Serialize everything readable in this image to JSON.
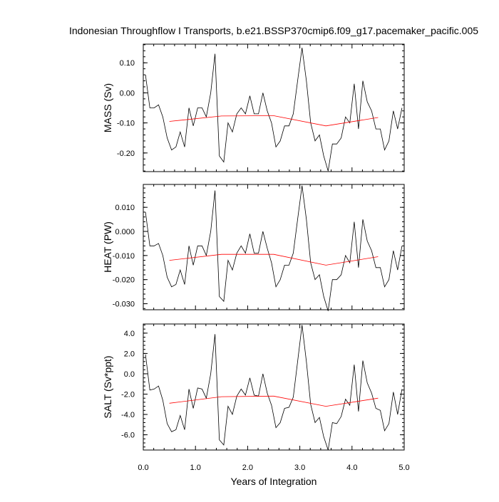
{
  "chart_data": {
    "type": "line",
    "title": "Indonesian Throughflow I Transports, b.e21.BSSP370cmip6.f09_g17.pacemaker_pacific.005",
    "xlabel": "Years of Integration",
    "xlim": [
      0,
      5
    ],
    "x_ticks": [
      0.0,
      1.0,
      2.0,
      3.0,
      4.0,
      5.0
    ],
    "x_tick_labels": [
      "0.0",
      "1.0",
      "2.0",
      "3.0",
      "4.0",
      "5.0"
    ],
    "x_minor_step": 0.2,
    "x": [
      0.0417,
      0.125,
      0.2083,
      0.2917,
      0.375,
      0.4583,
      0.5417,
      0.625,
      0.7083,
      0.7917,
      0.875,
      0.9583,
      1.0417,
      1.125,
      1.2083,
      1.2917,
      1.375,
      1.4583,
      1.5417,
      1.625,
      1.7083,
      1.7917,
      1.875,
      1.9583,
      2.0417,
      2.125,
      2.2083,
      2.2917,
      2.375,
      2.4583,
      2.5417,
      2.625,
      2.7083,
      2.7917,
      2.875,
      2.9583,
      3.0417,
      3.125,
      3.2083,
      3.2917,
      3.375,
      3.4583,
      3.5417,
      3.625,
      3.7083,
      3.7917,
      3.875,
      3.9583,
      4.0417,
      4.125,
      4.2083,
      4.2917,
      4.375,
      4.4583,
      4.5417,
      4.625,
      4.7083,
      4.7917,
      4.875,
      4.9583
    ],
    "mean_x": [
      0.5,
      1.5,
      2.5,
      3.5,
      4.5
    ],
    "panels": [
      {
        "ylabel": "MASS (Sv)",
        "ylim": [
          -0.262,
          0.162
        ],
        "y_ticks": [
          -0.2,
          -0.1,
          0.0,
          0.1
        ],
        "y_tick_labels": [
          "-0.20",
          "-0.10",
          "0.00",
          "0.10"
        ],
        "y_minor_step": 0.02,
        "values": [
          0.06,
          -0.05,
          -0.05,
          -0.04,
          -0.08,
          -0.15,
          -0.19,
          -0.18,
          -0.13,
          -0.18,
          -0.05,
          -0.11,
          -0.05,
          -0.05,
          -0.08,
          0.0,
          0.13,
          -0.21,
          -0.23,
          -0.1,
          -0.13,
          -0.07,
          -0.05,
          -0.07,
          -0.01,
          -0.07,
          -0.07,
          0.0,
          -0.06,
          -0.1,
          -0.18,
          -0.16,
          -0.11,
          -0.11,
          -0.07,
          0.04,
          0.15,
          0.04,
          -0.1,
          -0.16,
          -0.14,
          -0.21,
          -0.26,
          -0.17,
          -0.17,
          -0.15,
          -0.08,
          -0.1,
          0.03,
          -0.12,
          0.04,
          -0.03,
          -0.06,
          -0.12,
          -0.12,
          -0.19,
          -0.16,
          -0.06,
          -0.12,
          -0.05
        ],
        "mean_values": [
          -0.095,
          -0.077,
          -0.076,
          -0.11,
          -0.082
        ]
      },
      {
        "ylabel": "HEAT (PW)",
        "ylim": [
          -0.0325,
          0.0195
        ],
        "y_ticks": [
          -0.03,
          -0.02,
          -0.01,
          0.0,
          0.01
        ],
        "y_tick_labels": [
          "-0.030",
          "-0.020",
          "-0.010",
          "0.000",
          "0.010"
        ],
        "y_minor_step": 0.002,
        "values": [
          0.008,
          -0.006,
          -0.006,
          -0.005,
          -0.01,
          -0.019,
          -0.023,
          -0.022,
          -0.016,
          -0.022,
          -0.006,
          -0.014,
          -0.006,
          -0.006,
          -0.01,
          0.0,
          0.017,
          -0.027,
          -0.029,
          -0.012,
          -0.016,
          -0.009,
          -0.006,
          -0.009,
          -0.001,
          -0.009,
          -0.009,
          0.0,
          -0.007,
          -0.013,
          -0.023,
          -0.02,
          -0.014,
          -0.014,
          -0.009,
          0.005,
          0.019,
          0.005,
          -0.013,
          -0.02,
          -0.018,
          -0.027,
          -0.033,
          -0.02,
          -0.02,
          -0.018,
          -0.01,
          -0.013,
          0.004,
          -0.015,
          0.005,
          -0.004,
          -0.008,
          -0.015,
          -0.015,
          -0.023,
          -0.02,
          -0.008,
          -0.016,
          -0.006
        ],
        "mean_values": [
          -0.012,
          -0.0095,
          -0.0095,
          -0.014,
          -0.0105
        ]
      },
      {
        "ylabel": "SALT (Sv*ppt)",
        "ylim": [
          -7.5,
          4.9
        ],
        "y_ticks": [
          -6.0,
          -4.0,
          -2.0,
          0.0,
          2.0,
          4.0
        ],
        "y_tick_labels": [
          "-6.0",
          "-4.0",
          "-2.0",
          "0.0",
          "2.0",
          "4.0"
        ],
        "y_minor_step": 0.4,
        "values": [
          1.9,
          -1.6,
          -1.5,
          -1.2,
          -2.6,
          -4.9,
          -5.7,
          -5.5,
          -4.1,
          -5.5,
          -1.5,
          -3.4,
          -1.4,
          -1.5,
          -2.4,
          0.0,
          3.9,
          -6.5,
          -7.0,
          -3.2,
          -4.0,
          -2.2,
          -1.5,
          -2.1,
          -0.4,
          -2.1,
          -2.2,
          0.0,
          -1.9,
          -3.1,
          -5.3,
          -4.8,
          -3.4,
          -3.3,
          -2.3,
          1.2,
          4.8,
          1.2,
          -3.0,
          -4.8,
          -4.3,
          -6.2,
          -7.5,
          -4.8,
          -4.9,
          -4.2,
          -2.5,
          -3.1,
          0.9,
          -3.7,
          1.3,
          -0.9,
          -1.9,
          -3.4,
          -3.6,
          -5.6,
          -4.9,
          -1.8,
          -4.0,
          -1.5
        ],
        "mean_values": [
          -2.9,
          -2.25,
          -2.2,
          -3.2,
          -2.4
        ]
      }
    ]
  }
}
